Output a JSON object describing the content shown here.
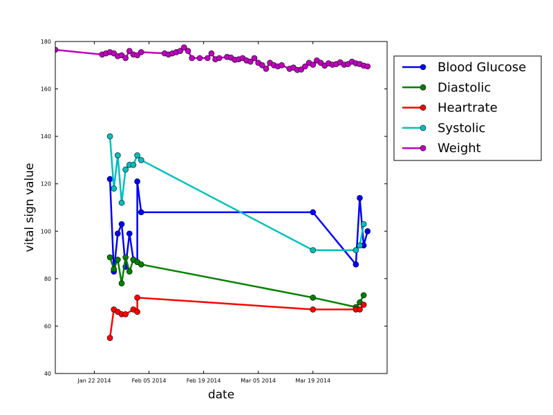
{
  "chart_data": {
    "type": "line",
    "title": "",
    "xlabel": "date",
    "ylabel": "vital sign value",
    "x_tick_labels": [
      "Jan 22 2014",
      "Feb 05 2014",
      "Feb 19 2014",
      "Mar 05 2014",
      "Mar 19 2014"
    ],
    "x_ticks": [
      "2014-01-22",
      "2014-02-05",
      "2014-02-19",
      "2014-03-05",
      "2014-03-19"
    ],
    "xlim": [
      "2014-01-12",
      "2014-04-07"
    ],
    "y_ticks": [
      40,
      60,
      80,
      100,
      120,
      140,
      160,
      180
    ],
    "y_tick_labels": [
      "40",
      "60",
      "80",
      "100",
      "120",
      "140",
      "160",
      "180"
    ],
    "ylim": [
      40,
      180
    ],
    "grid": false,
    "legend_position": "outside-right",
    "series": [
      {
        "name": "Blood Glucose",
        "color": "#0000ff",
        "x": [
          "2014-01-26",
          "2014-01-27",
          "2014-01-28",
          "2014-01-29",
          "2014-01-30",
          "2014-01-31",
          "2014-02-01",
          "2014-02-02",
          "2014-02-02",
          "2014-02-03",
          "2014-03-19",
          "2014-03-30",
          "2014-03-31",
          "2014-04-01",
          "2014-04-02"
        ],
        "values": [
          122,
          83,
          99,
          103,
          85,
          99,
          88,
          87,
          121,
          108,
          108,
          86,
          114,
          94,
          100
        ]
      },
      {
        "name": "Diastolic",
        "color": "#008000",
        "x": [
          "2014-01-26",
          "2014-01-27",
          "2014-01-28",
          "2014-01-29",
          "2014-01-30",
          "2014-01-31",
          "2014-02-01",
          "2014-02-02",
          "2014-02-03",
          "2014-03-19",
          "2014-03-30",
          "2014-03-31",
          "2014-04-01"
        ],
        "values": [
          89,
          84,
          88,
          78,
          89,
          83,
          88,
          87,
          86,
          72,
          68,
          70,
          73
        ]
      },
      {
        "name": "Heartrate",
        "color": "#ff0000",
        "x": [
          "2014-01-26",
          "2014-01-27",
          "2014-01-28",
          "2014-01-29",
          "2014-01-30",
          "2014-02-01",
          "2014-02-02",
          "2014-02-02",
          "2014-03-19",
          "2014-03-30",
          "2014-03-31",
          "2014-04-01"
        ],
        "values": [
          55,
          67,
          66,
          65,
          65,
          67,
          66,
          72,
          67,
          67,
          67,
          69
        ]
      },
      {
        "name": "Systolic",
        "color": "#00bfbf",
        "x": [
          "2014-01-26",
          "2014-01-27",
          "2014-01-28",
          "2014-01-29",
          "2014-01-30",
          "2014-01-31",
          "2014-02-01",
          "2014-02-02",
          "2014-02-03",
          "2014-03-19",
          "2014-03-30",
          "2014-03-31",
          "2014-04-01"
        ],
        "values": [
          140,
          118,
          132,
          112,
          126,
          128,
          128,
          132,
          130,
          92,
          92,
          94,
          103
        ]
      },
      {
        "name": "Weight",
        "color": "#bf00bf",
        "x": [
          "2014-01-12",
          "2014-01-24",
          "2014-01-25",
          "2014-01-26",
          "2014-01-27",
          "2014-01-28",
          "2014-01-29",
          "2014-01-30",
          "2014-01-31",
          "2014-02-01",
          "2014-02-02",
          "2014-02-03",
          "2014-02-09",
          "2014-02-10",
          "2014-02-11",
          "2014-02-12",
          "2014-02-13",
          "2014-02-14",
          "2014-02-15",
          "2014-02-16",
          "2014-02-18",
          "2014-02-20",
          "2014-02-21",
          "2014-02-22",
          "2014-02-23",
          "2014-02-25",
          "2014-02-26",
          "2014-02-27",
          "2014-02-28",
          "2014-03-01",
          "2014-03-02",
          "2014-03-03",
          "2014-03-04",
          "2014-03-05",
          "2014-03-06",
          "2014-03-07",
          "2014-03-08",
          "2014-03-09",
          "2014-03-10",
          "2014-03-11",
          "2014-03-13",
          "2014-03-14",
          "2014-03-15",
          "2014-03-16",
          "2014-03-17",
          "2014-03-18",
          "2014-03-19",
          "2014-03-20",
          "2014-03-21",
          "2014-03-22",
          "2014-03-23",
          "2014-03-24",
          "2014-03-25",
          "2014-03-26",
          "2014-03-27",
          "2014-03-28",
          "2014-03-29",
          "2014-03-30",
          "2014-03-31",
          "2014-04-01",
          "2014-04-02"
        ],
        "values": [
          176.5,
          174.5,
          175,
          175.5,
          175,
          173.8,
          174.2,
          173,
          176,
          174.5,
          174.2,
          175.5,
          175,
          174.5,
          175,
          175.5,
          176,
          177.5,
          176,
          173,
          173,
          173,
          175,
          172.5,
          173,
          173.5,
          173.2,
          172.3,
          172.5,
          173,
          172,
          171.5,
          173,
          171,
          170,
          168.5,
          171,
          170,
          169.5,
          170,
          168.5,
          169,
          168,
          168.2,
          169.5,
          171,
          170.2,
          172,
          171,
          169.8,
          170.8,
          170.2,
          170.5,
          171.2,
          170.2,
          170.5,
          171.5,
          170.8,
          170.5,
          169.8,
          169.5
        ]
      }
    ]
  }
}
